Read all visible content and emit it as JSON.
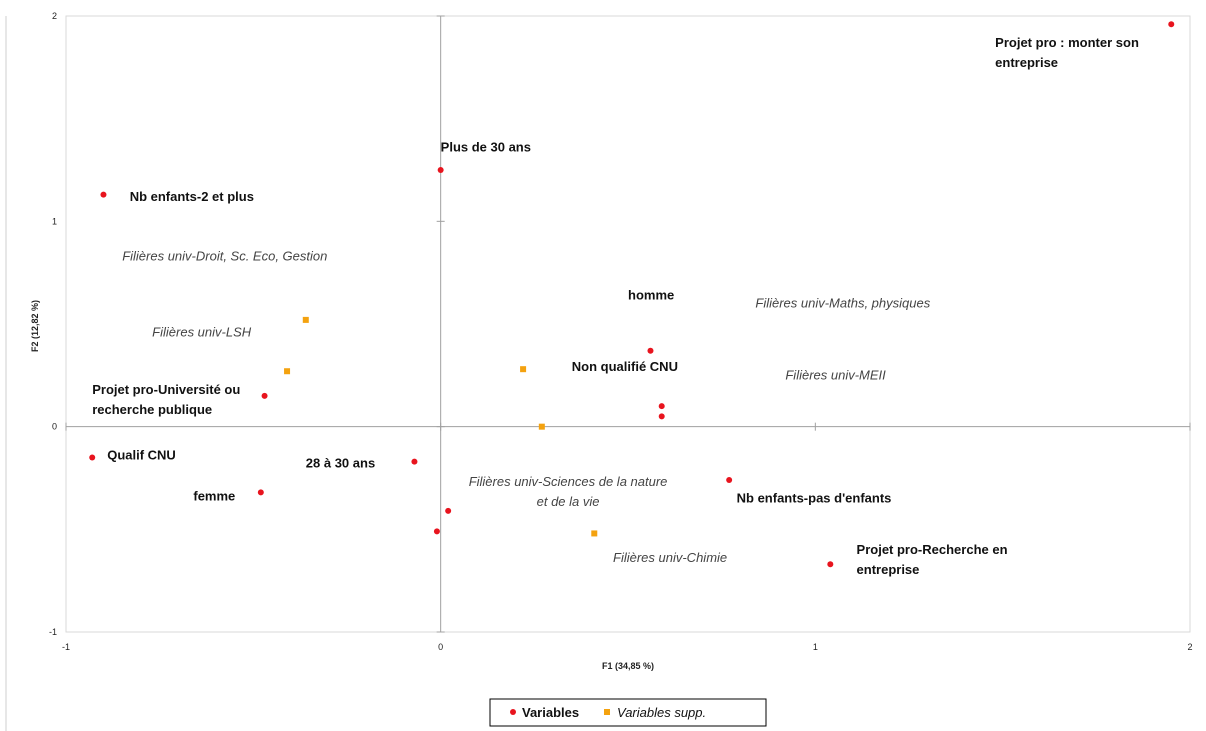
{
  "chart_data": {
    "type": "scatter",
    "title": "",
    "xlabel": "F1 (34,85 %)",
    "ylabel": "F2 (12,82 %)",
    "xlim": [
      -1,
      2
    ],
    "ylim": [
      -1,
      2
    ],
    "xticks": [
      -1,
      0,
      1,
      2
    ],
    "yticks": [
      -1,
      0,
      1,
      2
    ],
    "grid": false,
    "legend_position": "bottom",
    "series": [
      {
        "name": "Variables",
        "color": "#e8141e",
        "marker": "circle",
        "points": [
          {
            "x": 1.95,
            "y": 1.96
          },
          {
            "x": 0.0,
            "y": 1.25
          },
          {
            "x": -0.9,
            "y": 1.13
          },
          {
            "x": 0.56,
            "y": 0.37
          },
          {
            "x": 0.59,
            "y": 0.1
          },
          {
            "x": 0.59,
            "y": 0.05
          },
          {
            "x": -0.47,
            "y": 0.15
          },
          {
            "x": -0.93,
            "y": -0.15
          },
          {
            "x": -0.48,
            "y": -0.32
          },
          {
            "x": -0.07,
            "y": -0.17
          },
          {
            "x": 0.77,
            "y": -0.26
          },
          {
            "x": 0.02,
            "y": -0.41
          },
          {
            "x": -0.01,
            "y": -0.51
          },
          {
            "x": 1.04,
            "y": -0.67
          }
        ]
      },
      {
        "name": "Variables supp.",
        "color": "#f4a20f",
        "marker": "square",
        "points": [
          {
            "x": -0.36,
            "y": 0.52
          },
          {
            "x": -0.41,
            "y": 0.27
          },
          {
            "x": 0.22,
            "y": 0.28
          },
          {
            "x": 0.27,
            "y": 0.0
          },
          {
            "x": 0.41,
            "y": -0.52
          }
        ]
      }
    ],
    "annotations": [
      {
        "text": [
          "Projet pro : monter son",
          "entreprise"
        ],
        "x": 1.48,
        "y": 1.85,
        "style": "bold",
        "anchor": "start"
      },
      {
        "text": [
          "Plus de 30 ans"
        ],
        "x": 0.0,
        "y": 1.34,
        "style": "bold",
        "anchor": "start"
      },
      {
        "text": [
          "Nb enfants-2 et plus"
        ],
        "x": -0.83,
        "y": 1.1,
        "style": "bold",
        "anchor": "start"
      },
      {
        "text": [
          "Filières univ-Droit, Sc. Eco, Gestion"
        ],
        "x": -0.85,
        "y": 0.81,
        "style": "italic",
        "anchor": "start"
      },
      {
        "text": [
          "homme"
        ],
        "x": 0.5,
        "y": 0.62,
        "style": "bold",
        "anchor": "start"
      },
      {
        "text": [
          "Filières univ-Maths, physiques"
        ],
        "x": 0.84,
        "y": 0.58,
        "style": "italic",
        "anchor": "start"
      },
      {
        "text": [
          "Filières univ-LSH"
        ],
        "x": -0.77,
        "y": 0.44,
        "style": "italic",
        "anchor": "start"
      },
      {
        "text": [
          "Non qualifié CNU"
        ],
        "x": 0.35,
        "y": 0.27,
        "style": "bold",
        "anchor": "start"
      },
      {
        "text": [
          "Filières univ-MEII"
        ],
        "x": 0.92,
        "y": 0.23,
        "style": "italic",
        "anchor": "start"
      },
      {
        "text": [
          "Projet pro-Université ou",
          "recherche publique"
        ],
        "x": -0.93,
        "y": 0.16,
        "style": "bold",
        "anchor": "start"
      },
      {
        "text": [
          "Qualif CNU"
        ],
        "x": -0.89,
        "y": -0.16,
        "style": "bold",
        "anchor": "start"
      },
      {
        "text": [
          "28 à 30 ans"
        ],
        "x": -0.36,
        "y": -0.2,
        "style": "bold",
        "anchor": "start"
      },
      {
        "text": [
          "Filières univ-Sciences de la nature",
          "et de la vie"
        ],
        "x": 0.34,
        "y": -0.29,
        "style": "italic",
        "anchor": "middle"
      },
      {
        "text": [
          "femme"
        ],
        "x": -0.66,
        "y": -0.36,
        "style": "bold",
        "anchor": "start"
      },
      {
        "text": [
          "Nb enfants-pas d'enfants"
        ],
        "x": 0.79,
        "y": -0.37,
        "style": "bold",
        "anchor": "start"
      },
      {
        "text": [
          "Projet pro-Recherche en",
          "entreprise"
        ],
        "x": 1.11,
        "y": -0.62,
        "style": "bold",
        "anchor": "start"
      },
      {
        "text": [
          "Filières univ-Chimie"
        ],
        "x": 0.46,
        "y": -0.66,
        "style": "italic",
        "anchor": "start"
      }
    ]
  }
}
